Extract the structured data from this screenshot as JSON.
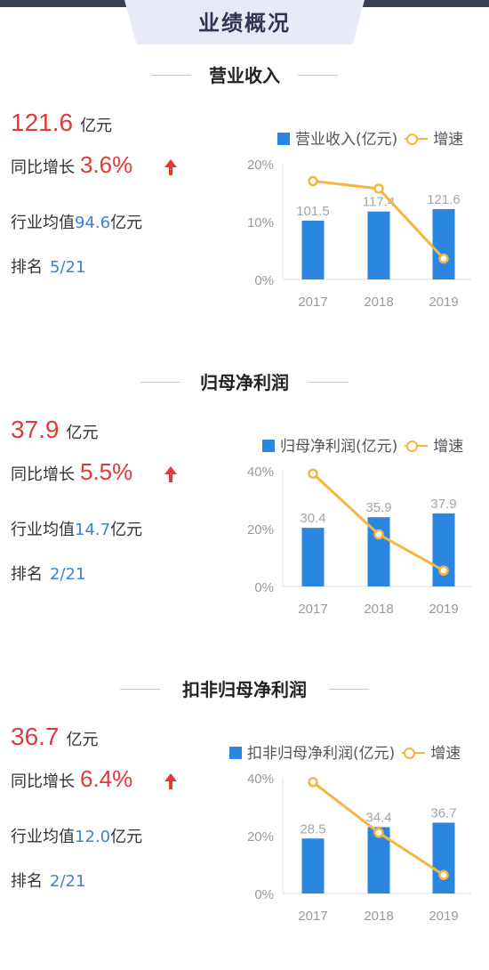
{
  "header": {
    "title": "业绩概况"
  },
  "sections": [
    {
      "title": "营业收入",
      "value": "121.6",
      "unit": "亿元",
      "growth_label": "同比增长",
      "growth_value": "3.6%",
      "industry_avg_label": "行业均值",
      "industry_avg_value": "94.6",
      "industry_avg_unit": "亿元",
      "rank_label": "排名",
      "rank_value": "5/21",
      "legend_bar": "营业收入(亿元)",
      "legend_line": "增速",
      "chart_data": {
        "type": "bar",
        "categories": [
          "2017",
          "2018",
          "2019"
        ],
        "series": [
          {
            "name": "营业收入(亿元)",
            "type": "bar",
            "values": [
              101.5,
              117.4,
              121.6
            ],
            "labels": [
              "101.5",
              "117.4",
              "121.6"
            ]
          },
          {
            "name": "增速",
            "type": "line",
            "values": [
              17,
              15.7,
              3.6
            ]
          }
        ],
        "ylim_pct": [
          0,
          20
        ],
        "ylim_bar": [
          0,
          200
        ],
        "yticks": [
          "0%",
          "10%",
          "20%"
        ]
      }
    },
    {
      "title": "归母净利润",
      "value": "37.9",
      "unit": "亿元",
      "growth_label": "同比增长",
      "growth_value": "5.5%",
      "industry_avg_label": "行业均值",
      "industry_avg_value": "14.7",
      "industry_avg_unit": "亿元",
      "rank_label": "排名",
      "rank_value": "2/21",
      "legend_bar": "归母净利润(亿元)",
      "legend_line": "增速",
      "chart_data": {
        "type": "bar",
        "categories": [
          "2017",
          "2018",
          "2019"
        ],
        "series": [
          {
            "name": "归母净利润(亿元)",
            "type": "bar",
            "values": [
              30.4,
              35.9,
              37.9
            ],
            "labels": [
              "30.4",
              "35.9",
              "37.9"
            ]
          },
          {
            "name": "增速",
            "type": "line",
            "values": [
              39,
              18,
              5.5
            ]
          }
        ],
        "ylim_pct": [
          0,
          40
        ],
        "ylim_bar": [
          0,
          60
        ],
        "yticks": [
          "0%",
          "20%",
          "40%"
        ]
      }
    },
    {
      "title": "扣非归母净利润",
      "value": "36.7",
      "unit": "亿元",
      "growth_label": "同比增长",
      "growth_value": "6.4%",
      "industry_avg_label": "行业均值",
      "industry_avg_value": "12.0",
      "industry_avg_unit": "亿元",
      "rank_label": "排名",
      "rank_value": "2/21",
      "legend_bar": "扣非归母净利润(亿元)",
      "legend_line": "增速",
      "chart_data": {
        "type": "bar",
        "categories": [
          "2017",
          "2018",
          "2019"
        ],
        "series": [
          {
            "name": "扣非归母净利润(亿元)",
            "type": "bar",
            "values": [
              28.5,
              34.4,
              36.7
            ],
            "labels": [
              "28.5",
              "34.4",
              "36.7"
            ]
          },
          {
            "name": "增速",
            "type": "line",
            "values": [
              38.5,
              21,
              6.4
            ]
          }
        ],
        "ylim_pct": [
          0,
          40
        ],
        "ylim_bar": [
          0,
          60
        ],
        "yticks": [
          "0%",
          "20%",
          "40%"
        ]
      }
    }
  ],
  "colors": {
    "bar": "#2b86e0",
    "line": "#f5b63f",
    "accent_red": "#e03a3a",
    "accent_blue": "#3f7fd8"
  },
  "icons": {
    "growth_arrow": "arrow-up-icon"
  }
}
